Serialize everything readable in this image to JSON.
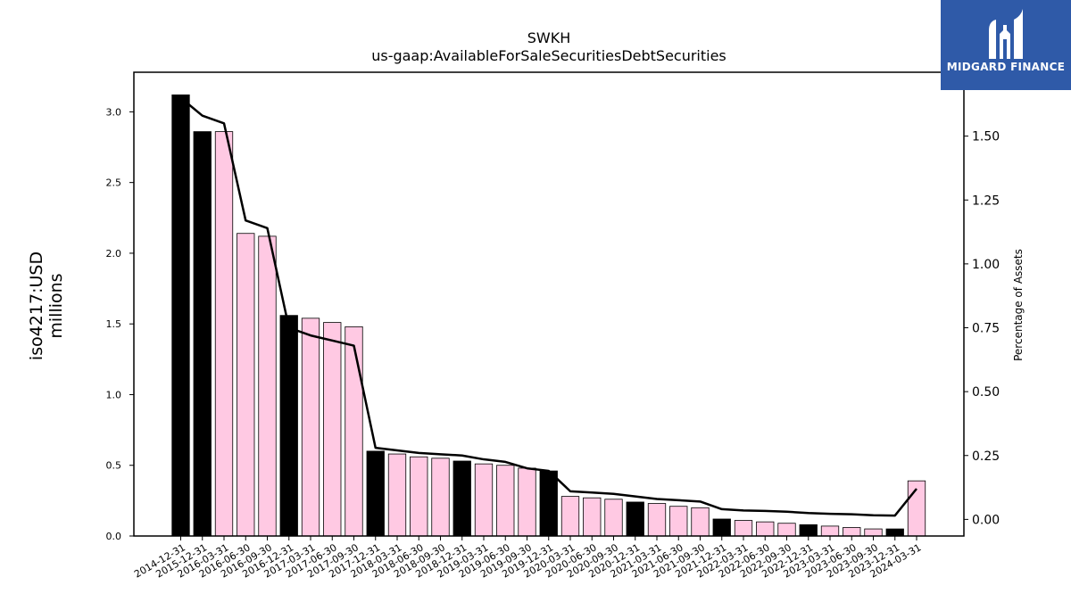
{
  "logo": {
    "text": "MIDGARD FINANCE",
    "icon": "midgard-logo-icon"
  },
  "chart_data": {
    "type": "bar",
    "title": "SWKH",
    "subtitle": "us-gaap:AvailableForSaleSecuritiesDebtSecurities",
    "ylabel": "iso4217:USD\nmillions",
    "y2label": "Percentage of Assets",
    "ylim": [
      0,
      3.28
    ],
    "y2lim": [
      -0.065,
      1.75
    ],
    "yticks": [
      "0.0",
      "0.5",
      "1.0",
      "1.5",
      "2.0",
      "2.5",
      "3.0"
    ],
    "y2ticks": [
      "0.00",
      "0.25",
      "0.50",
      "0.75",
      "1.00",
      "1.25",
      "1.50"
    ],
    "grid": false,
    "legend": "none",
    "colors": {
      "annual": "#000000",
      "quarterly": "#ffc9e3",
      "line": "#000000",
      "edge": "#000000"
    },
    "categories": [
      "2014-12-31",
      "2015-12-31",
      "2016-03-31",
      "2016-06-30",
      "2016-09-30",
      "2016-12-31",
      "2017-03-31",
      "2017-06-30",
      "2017-09-30",
      "2017-12-31",
      "2018-03-31",
      "2018-06-30",
      "2018-09-30",
      "2018-12-31",
      "2019-03-31",
      "2019-06-30",
      "2019-09-30",
      "2019-12-31",
      "2020-03-31",
      "2020-06-30",
      "2020-09-30",
      "2020-12-31",
      "2021-03-31",
      "2021-06-30",
      "2021-09-30",
      "2021-12-31",
      "2022-03-31",
      "2022-06-30",
      "2022-09-30",
      "2022-12-31",
      "2023-03-31",
      "2023-06-30",
      "2023-09-30",
      "2023-12-31",
      "2024-03-31"
    ],
    "bar_kind": [
      "annual",
      "annual",
      "quarterly",
      "quarterly",
      "quarterly",
      "annual",
      "quarterly",
      "quarterly",
      "quarterly",
      "annual",
      "quarterly",
      "quarterly",
      "quarterly",
      "annual",
      "quarterly",
      "quarterly",
      "quarterly",
      "annual",
      "quarterly",
      "quarterly",
      "quarterly",
      "annual",
      "quarterly",
      "quarterly",
      "quarterly",
      "annual",
      "quarterly",
      "quarterly",
      "quarterly",
      "annual",
      "quarterly",
      "quarterly",
      "quarterly",
      "annual",
      "quarterly"
    ],
    "series": [
      {
        "axis": "left",
        "kind": "bar",
        "values": [
          3.12,
          2.86,
          2.86,
          2.14,
          2.12,
          1.56,
          1.54,
          1.51,
          1.48,
          0.6,
          0.58,
          0.56,
          0.55,
          0.53,
          0.51,
          0.5,
          0.48,
          0.46,
          0.28,
          0.27,
          0.26,
          0.24,
          0.23,
          0.21,
          0.2,
          0.12,
          0.11,
          0.1,
          0.09,
          0.08,
          0.07,
          0.06,
          0.05,
          0.05,
          0.39
        ]
      },
      {
        "axis": "right",
        "kind": "line",
        "values": [
          1.65,
          1.58,
          1.55,
          1.17,
          1.14,
          0.75,
          0.72,
          0.7,
          0.68,
          0.28,
          0.27,
          0.26,
          0.255,
          0.25,
          0.235,
          0.225,
          0.2,
          0.19,
          0.11,
          0.105,
          0.1,
          0.09,
          0.08,
          0.075,
          0.07,
          0.04,
          0.035,
          0.033,
          0.03,
          0.025,
          0.022,
          0.02,
          0.016,
          0.015,
          0.12
        ]
      }
    ]
  }
}
